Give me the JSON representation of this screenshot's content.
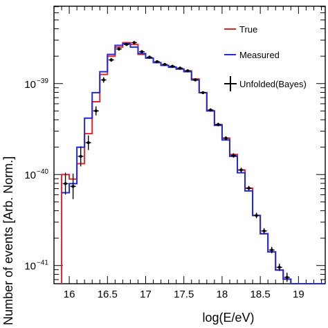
{
  "chart_data": {
    "type": "line",
    "xlabel": "log(E/eV)",
    "ylabel": "Number of events [Arb. Norm.]",
    "xlim": [
      15.8,
      19.35
    ],
    "ylim_log10": [
      -41.2,
      -38.15
    ],
    "yscale": "log",
    "x_ticks": [
      {
        "value": 16,
        "label": "16"
      },
      {
        "value": 16.5,
        "label": "16.5"
      },
      {
        "value": 17,
        "label": "17"
      },
      {
        "value": 17.5,
        "label": "17.5"
      },
      {
        "value": 18,
        "label": "18"
      },
      {
        "value": 18.5,
        "label": "18.5"
      },
      {
        "value": 19,
        "label": "19"
      }
    ],
    "y_ticks": [
      {
        "log10": -41,
        "base": "10",
        "exp": "−41"
      },
      {
        "log10": -40,
        "base": "10",
        "exp": "−40"
      },
      {
        "log10": -39,
        "base": "10",
        "exp": "−39"
      }
    ],
    "bin_edges": [
      15.9,
      16.0,
      16.1,
      16.2,
      16.3,
      16.4,
      16.5,
      16.6,
      16.7,
      16.8,
      16.9,
      17.0,
      17.1,
      17.2,
      17.3,
      17.4,
      17.5,
      17.6,
      17.7,
      17.8,
      17.9,
      18.0,
      18.1,
      18.2,
      18.3,
      18.4,
      18.5,
      18.6,
      18.7,
      18.8,
      18.9,
      19.0
    ],
    "series": [
      {
        "name": "True",
        "style": "step",
        "color": "#e8232a",
        "log10_values": [
          -40.0,
          -40.05,
          -39.88,
          -39.55,
          -39.2,
          -38.9,
          -38.7,
          -38.6,
          -38.55,
          -38.57,
          -38.68,
          -38.72,
          -38.77,
          -38.8,
          -38.82,
          -38.84,
          -38.86,
          -38.95,
          -39.1,
          -39.3,
          -39.45,
          -39.6,
          -39.78,
          -39.95,
          -40.15,
          -40.45,
          -40.65,
          -40.85,
          -41.05,
          -41.15,
          -41.2
        ],
        "start_from_bottom": true
      },
      {
        "name": "Measured",
        "style": "step",
        "color": "#1f2bd6",
        "log10_values": [
          -40.2,
          -40.1,
          -39.7,
          -39.38,
          -39.1,
          -38.87,
          -38.68,
          -38.58,
          -38.56,
          -38.6,
          -38.67,
          -38.72,
          -38.77,
          -38.8,
          -38.82,
          -38.84,
          -38.87,
          -38.96,
          -39.1,
          -39.3,
          -39.46,
          -39.62,
          -39.8,
          -39.98,
          -40.18,
          -40.45,
          -40.65,
          -40.85,
          -41.05,
          -41.15,
          -41.2
        ]
      },
      {
        "name": "Unfolded(Bayes)",
        "style": "errorbar",
        "color": "#000000",
        "x": [
          15.95,
          16.05,
          16.15,
          16.25,
          16.35,
          16.45,
          16.55,
          16.65,
          16.75,
          16.85,
          16.95,
          17.05,
          17.15,
          17.25,
          17.35,
          17.45,
          17.55,
          17.65,
          17.75,
          17.85,
          17.95,
          18.05,
          18.15,
          18.25,
          18.35,
          18.45,
          18.55,
          18.65,
          18.75,
          18.85
        ],
        "log10_values": [
          -40.1,
          -40.13,
          -39.8,
          -39.65,
          -39.3,
          -38.96,
          -38.74,
          -38.62,
          -38.57,
          -38.55,
          -38.65,
          -38.71,
          -38.76,
          -38.79,
          -38.81,
          -38.83,
          -38.86,
          -38.96,
          -39.1,
          -39.29,
          -39.45,
          -39.6,
          -39.79,
          -39.95,
          -40.15,
          -40.45,
          -40.62,
          -40.83,
          -41.02,
          -41.13
        ],
        "log10_errors": [
          0.12,
          0.14,
          0.11,
          0.08,
          0.05,
          0.03,
          0.02,
          0.015,
          0.015,
          0.015,
          0.015,
          0.015,
          0.015,
          0.015,
          0.015,
          0.015,
          0.015,
          0.015,
          0.015,
          0.015,
          0.02,
          0.02,
          0.025,
          0.025,
          0.025,
          0.03,
          0.03,
          0.035,
          0.04,
          0.05
        ]
      }
    ],
    "legend": {
      "placement": "top-right",
      "entries": [
        {
          "label": "True",
          "symbol": "line",
          "color": "#e8232a"
        },
        {
          "label": "Measured",
          "symbol": "line",
          "color": "#1f2bd6"
        },
        {
          "label": "Unfolded(Bayes)",
          "symbol": "errorbar",
          "color": "#000000"
        }
      ]
    },
    "grid": false
  }
}
